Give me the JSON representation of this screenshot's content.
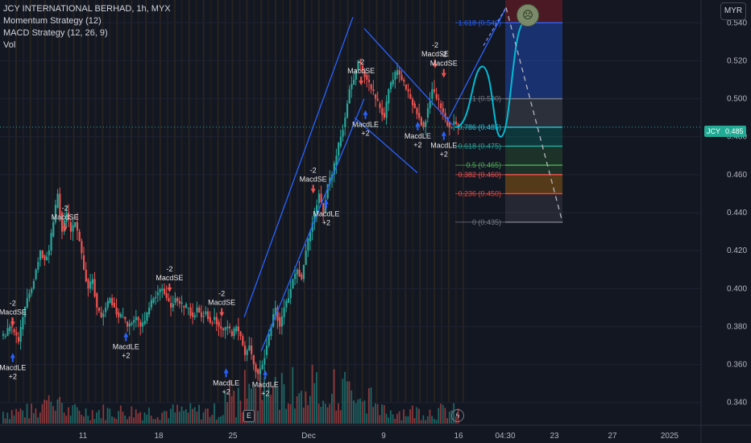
{
  "header": {
    "title": "JCY INTERNATIONAL BERHAD, 1h, MYX",
    "indicators": [
      "Momentum Strategy (12)",
      "MACD Strategy (12, 26, 9)",
      "Vol"
    ],
    "currency": "MYR"
  },
  "price_tag": {
    "symbol": "JCY",
    "value": "0.485"
  },
  "colors": {
    "up": "#26a69a",
    "down": "#ef5350",
    "channel": "#2962ff",
    "background": "#131722",
    "projection": "#00bcd4"
  },
  "icons": [
    "e-icon",
    "lightning-icon",
    "sad-face-icon"
  ],
  "chart_data": {
    "type": "candlestick",
    "y_axis": {
      "range": [
        0.328,
        0.552
      ],
      "ticks": [
        "0.540",
        "0.520",
        "0.500",
        "0.480",
        "0.460",
        "0.440",
        "0.420",
        "0.400",
        "0.380",
        "0.360",
        "0.340"
      ]
    },
    "x_axis": {
      "ticks": [
        "11",
        "18",
        "25",
        "Dec",
        "9",
        "16",
        "04:30",
        "23",
        "27",
        "2025"
      ]
    },
    "series_path": [
      [
        0.375,
        0.38,
        0.377,
        0.372,
        0.385,
        0.395,
        0.4,
        0.41,
        0.42,
        0.415,
        0.42,
        0.435,
        0.45,
        0.43,
        0.44,
        0.43,
        0.435,
        0.425,
        0.41,
        0.4,
        0.405
      ],
      [
        0.39,
        0.385,
        0.39,
        0.395,
        0.39,
        0.385,
        0.385,
        0.38,
        0.382,
        0.385,
        0.38,
        0.383,
        0.39,
        0.395,
        0.398,
        0.4,
        0.395,
        0.39,
        0.395,
        0.392,
        0.39
      ],
      [
        0.39,
        0.385,
        0.39,
        0.385,
        0.388,
        0.382,
        0.385,
        0.38,
        0.378,
        0.38,
        0.375,
        0.38,
        0.375,
        0.365,
        0.37,
        0.36,
        0.355,
        0.36,
        0.37,
        0.38,
        0.39
      ],
      [
        0.38,
        0.39,
        0.395,
        0.405,
        0.41,
        0.405,
        0.42,
        0.43,
        0.44,
        0.45,
        0.44,
        0.455,
        0.46,
        0.47,
        0.48,
        0.49,
        0.505,
        0.51,
        0.52,
        0.515,
        0.51
      ],
      [
        0.505,
        0.5,
        0.495,
        0.49,
        0.505,
        0.51,
        0.515,
        0.51,
        0.505,
        0.5,
        0.495,
        0.49,
        0.485,
        0.495,
        0.505,
        0.5,
        0.495,
        0.49,
        0.485,
        0.488,
        0.485
      ]
    ],
    "fib_levels": [
      {
        "label": "1.618 (0.540)",
        "value": 0.54,
        "color": "#2962ff"
      },
      {
        "label": "1 (0.500)",
        "value": 0.5,
        "color": "#787b86"
      },
      {
        "label": "0.786 (0.485)",
        "value": 0.485,
        "color": "#26c6da"
      },
      {
        "label": "0.618 (0.475)",
        "value": 0.475,
        "color": "#26a69a"
      },
      {
        "label": "0.5 (0.465)",
        "value": 0.465,
        "color": "#4caf50"
      },
      {
        "label": "0.382 (0.460)",
        "value": 0.46,
        "color": "#ef5350"
      },
      {
        "label": "0.236 (0.450)",
        "value": 0.45,
        "color": "#f44336"
      },
      {
        "label": "0 (0.435)",
        "value": 0.435,
        "color": "#787b86"
      }
    ],
    "signals": [
      {
        "label": "MacdSE",
        "qty": "-2",
        "dir": "short",
        "price": 0.38,
        "slot": 2
      },
      {
        "label": "MacdLE",
        "qty": "+2",
        "dir": "long",
        "price": 0.366,
        "slot": 2
      },
      {
        "label": "MacdSE",
        "qty": "-2",
        "dir": "short",
        "price": 0.43,
        "slot": 14
      },
      {
        "label": "MacdLE",
        "qty": "+2",
        "dir": "long",
        "price": 0.377,
        "slot": 28
      },
      {
        "label": "MacdSE",
        "qty": "-2",
        "dir": "short",
        "price": 0.398,
        "slot": 38
      },
      {
        "label": "MacdSE",
        "qty": "-2",
        "dir": "short",
        "price": 0.385,
        "slot": 50
      },
      {
        "label": "MacdLE",
        "qty": "+2",
        "dir": "long",
        "price": 0.358,
        "slot": 51
      },
      {
        "label": "MacdLE",
        "qty": "+2",
        "dir": "long",
        "price": 0.357,
        "slot": 60
      },
      {
        "label": "MacdSE",
        "qty": "-2",
        "dir": "short",
        "price": 0.45,
        "slot": 71
      },
      {
        "label": "MacdLE",
        "qty": "+2",
        "dir": "long",
        "price": 0.447,
        "slot": 74
      },
      {
        "label": "MacdSE",
        "qty": "-2",
        "dir": "short",
        "price": 0.507,
        "slot": 82
      },
      {
        "label": "MacdLE",
        "qty": "+2",
        "dir": "long",
        "price": 0.494,
        "slot": 83
      },
      {
        "label": "MacdSE",
        "qty": "-2",
        "dir": "short",
        "price": 0.516,
        "slot": 99
      },
      {
        "label": "MacdLE",
        "qty": "+2",
        "dir": "long",
        "price": 0.488,
        "slot": 95
      },
      {
        "label": "MacdSE",
        "qty": "-2",
        "dir": "short",
        "price": 0.511,
        "slot": 101
      },
      {
        "label": "MacdLE",
        "qty": "+2",
        "dir": "long",
        "price": 0.483,
        "slot": 101
      }
    ]
  }
}
